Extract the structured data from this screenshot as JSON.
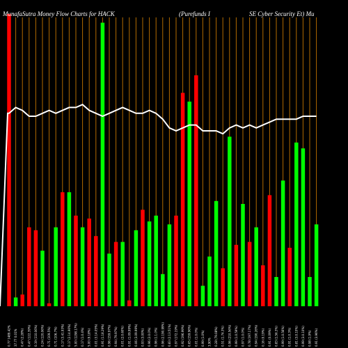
{
  "title": {
    "left": "MunafaSutra  Money Flow  Charts for HACK",
    "center": "(Purefunds I",
    "right": "SE Cyber Security Et) Mu"
  },
  "colors": {
    "background": "#000000",
    "up_bar": "#00ff00",
    "down_bar": "#ff0000",
    "grid_line": "#b36b00",
    "line": "#ffffff"
  },
  "chart_data": {
    "type": "bar",
    "title": "MunafaSutra Money Flow Charts for HACK (Purefunds ISE Cyber Security Et)",
    "categories": [
      "0.77 1489.42%",
      "37.77 0.01%",
      "0.47 (2.28%)",
      "0.47 (122.39%)",
      "0.19 (110.06%)",
      "0.24 (120.06%)",
      "0.71 (109.5%)",
      "0.71 (106.7%)",
      "0.17 (3.41.93%)",
      "0.17 (2.14.90%)",
      "5.00 (1298.17%)",
      "0.17 (1.0.4%)",
      "5.00 (9.18%)",
      "0.01 (3.14.05%)",
      "0.91 (1.18.29%)",
      "0.96 (159.97%)",
      "0.94 (79.97%)",
      "0.01 (2.0.60%)",
      "0.91 (1.09.99%)",
      "0.06 (3.09.99%)",
      "0.93 (3.00%)",
      "0.96 (2.0.0%)",
      "0.96 (1.1.0%)",
      "0.96 (2.190.99%)",
      "0.83 (2.13.51%)",
      "0.97 (172.19%)",
      "0.92 (196.99%)",
      "0.65 (159.96%)",
      "0.01 (1.0.0%)",
      "0.99 (1.0%)",
      "3.90%",
      "0.28 (79.08%)",
      "0.51 (1.74.3%)",
      "0.96 (210.56%)",
      "0.99 (1.0.59%)",
      "0.97 (1.0.0%)",
      "0.78 (197.17%)",
      "0.94 (190.26%)",
      "0.16 (0.19%)",
      "0.91 (0.09%)",
      "0.83 (1.56.3%)",
      "0.99 (1.0.56%)",
      "0.91 (1.0.3%)",
      "0.81 (3.0.10%)",
      "0.99 (3.0.10%)",
      "0.98 (1.9%)",
      "0.91 (3.96%)"
    ],
    "bar_colors": [
      "red",
      "green",
      "red",
      "red",
      "red",
      "green",
      "red",
      "green",
      "red",
      "green",
      "red",
      "green",
      "red",
      "red",
      "green",
      "green",
      "red",
      "green",
      "red",
      "green",
      "red",
      "green",
      "green",
      "green",
      "green",
      "red",
      "red",
      "green",
      "red",
      "green",
      "green",
      "green",
      "red",
      "green",
      "red",
      "green",
      "red",
      "green",
      "red",
      "red",
      "green",
      "green",
      "red",
      "green",
      "green",
      "green",
      "green"
    ],
    "values": [
      100,
      3,
      4,
      27,
      26,
      19,
      1,
      27,
      39,
      39,
      31,
      27,
      30,
      24,
      97,
      18,
      22,
      22,
      2,
      26,
      33,
      29,
      31,
      11,
      28,
      31,
      73,
      70,
      79,
      7,
      17,
      36,
      13,
      58,
      21,
      35,
      22,
      27,
      14,
      38,
      10,
      43,
      20,
      56,
      54,
      10,
      28
    ],
    "line": [
      66,
      68,
      67,
      65,
      65,
      66,
      67,
      66,
      67,
      68,
      68,
      69,
      67,
      66,
      65,
      66,
      67,
      68,
      67,
      66,
      66,
      67,
      66,
      64,
      61,
      60,
      61,
      62,
      62,
      60,
      60,
      60,
      59,
      61,
      62,
      61,
      62,
      61,
      62,
      63,
      64,
      64,
      64,
      64,
      65,
      65,
      65
    ],
    "ylim": [
      0,
      100
    ]
  }
}
